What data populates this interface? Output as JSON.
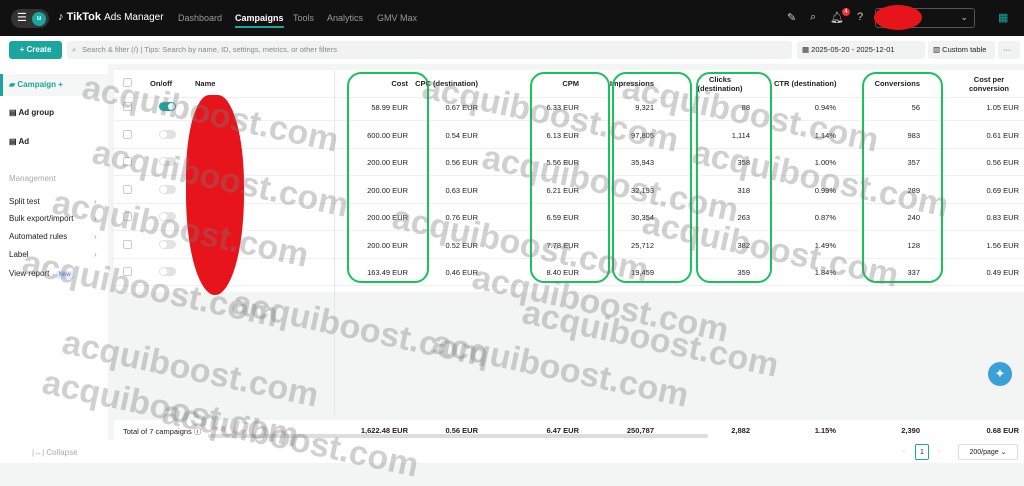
{
  "header": {
    "app_name": "TikTok",
    "app_suffix": "Ads Manager",
    "avatar_letter": "u",
    "nav": [
      "Dashboard",
      "Campaigns",
      "Tools",
      "Analytics",
      "GMV Max"
    ],
    "active_nav": "Campaigns",
    "notification_count": "4"
  },
  "toolbar": {
    "create_label": "+ Create",
    "search_placeholder": "Search & filter (/) | Tips: Search by name, ID, settings, metrics, or other filters",
    "date_range": "2025-05-20 - 2025-12-01",
    "custom_table": "Custom table",
    "more": "···"
  },
  "sidebar": {
    "campaign": "Campaign",
    "ad_group": "Ad group",
    "ad": "Ad",
    "section": "Management",
    "items": [
      "Split test",
      "Bulk export/import",
      "Automated rules",
      "Label",
      "View report"
    ],
    "new_badge": "New",
    "collapse": "Collapse"
  },
  "table": {
    "columns": [
      "On/off",
      "Name",
      "Cost",
      "CPC (destination)",
      "CPM",
      "Impressions",
      "Clicks (destination)",
      "CTR (destination)",
      "Conversions",
      "Cost per conversion"
    ],
    "rows": [
      {
        "on": true,
        "cost": "58.99 EUR",
        "cpc": "0.67 EUR",
        "cpm": "6.33 EUR",
        "imp": "9,321",
        "clicks": "88",
        "ctr": "0.94%",
        "conv": "56",
        "cpa": "1.05 EUR"
      },
      {
        "on": false,
        "cost": "600.00 EUR",
        "cpc": "0.54 EUR",
        "cpm": "6.13 EUR",
        "imp": "97,805",
        "clicks": "1,114",
        "ctr": "1.14%",
        "conv": "983",
        "cpa": "0.61 EUR"
      },
      {
        "on": false,
        "cost": "200.00 EUR",
        "cpc": "0.56 EUR",
        "cpm": "5.56 EUR",
        "imp": "35,943",
        "clicks": "358",
        "ctr": "1.00%",
        "conv": "357",
        "cpa": "0.56 EUR"
      },
      {
        "on": false,
        "cost": "200.00 EUR",
        "cpc": "0.63 EUR",
        "cpm": "6.21 EUR",
        "imp": "32,193",
        "clicks": "318",
        "ctr": "0.99%",
        "conv": "289",
        "cpa": "0.69 EUR"
      },
      {
        "on": false,
        "cost": "200.00 EUR",
        "cpc": "0.76 EUR",
        "cpm": "6.59 EUR",
        "imp": "30,354",
        "clicks": "263",
        "ctr": "0.87%",
        "conv": "240",
        "cpa": "0.83 EUR"
      },
      {
        "on": false,
        "cost": "200.00 EUR",
        "cpc": "0.52 EUR",
        "cpm": "7.78 EUR",
        "imp": "25,712",
        "clicks": "382",
        "ctr": "1.49%",
        "conv": "128",
        "cpa": "1.56 EUR"
      },
      {
        "on": false,
        "cost": "163.49 EUR",
        "cpc": "0.46 EUR",
        "cpm": "8.40 EUR",
        "imp": "19,459",
        "clicks": "359",
        "ctr": "1.84%",
        "conv": "337",
        "cpa": "0.49 EUR"
      }
    ],
    "total": {
      "label": "Total of 7 campaigns",
      "cost": "1,622.48 EUR",
      "cpc": "0.56 EUR",
      "cpm": "6.47 EUR",
      "imp": "250,787",
      "clicks": "2,882",
      "ctr": "1.15%",
      "conv": "2,390",
      "cpa": "0.68 EUR"
    }
  },
  "pagination": {
    "page": "1",
    "per_page": "200/page"
  },
  "watermark": "acquiboost.com",
  "colors": {
    "accent": "#1aa59f",
    "highlight": "#19c25a",
    "redaction": "#e8141b"
  }
}
